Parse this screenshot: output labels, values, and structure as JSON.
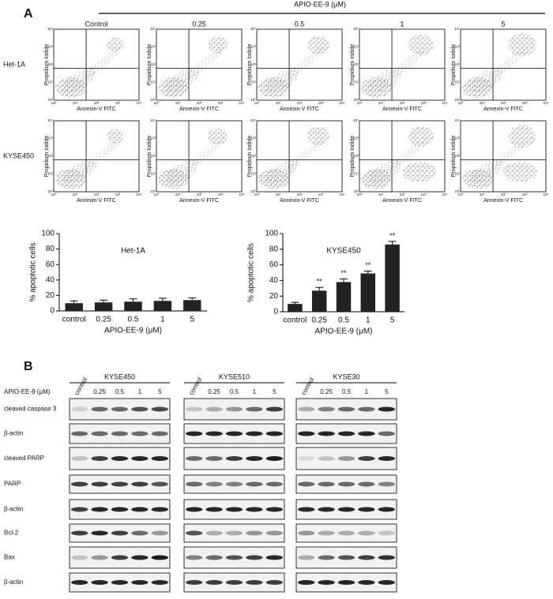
{
  "panel_a": {
    "label": "A",
    "treatment": "APIO-EE-9 (μM)",
    "columns": [
      "Control",
      "0.25",
      "0.5",
      "1",
      "5"
    ],
    "rows": [
      "Het-1A",
      "KYSE450"
    ],
    "x_axis_label": "Annexin-V FITC",
    "y_axis_label": "Propidium Iodide",
    "axis_ticks": [
      "10⁰",
      "10¹",
      "10²",
      "10³",
      "10⁴"
    ]
  },
  "chart_data": [
    {
      "type": "bar",
      "title": "Het-1A",
      "categories": [
        "control",
        "0.25",
        "0.5",
        "1",
        "5"
      ],
      "values": [
        10,
        11,
        12,
        13,
        14
      ],
      "errors": [
        3,
        3,
        3.5,
        3.5,
        3
      ],
      "x_label": "APIO-EE-9 (μM)",
      "y_label": "% apoptotic cells",
      "ylim": [
        0,
        100
      ],
      "yticks": [
        0,
        20,
        40,
        60,
        80,
        100
      ],
      "color": "#222222"
    },
    {
      "type": "bar",
      "title": "KYSE450",
      "categories": [
        "control",
        "0.25",
        "0.5",
        "1",
        "5"
      ],
      "values": [
        10,
        27,
        38,
        49,
        86
      ],
      "errors": [
        2,
        4,
        4,
        3,
        4
      ],
      "significance": [
        null,
        "**",
        "**",
        "**",
        "**"
      ],
      "x_label": "APIO-EE-9 (μM)",
      "y_label": "% apoptotic cells",
      "ylim": [
        0,
        100
      ],
      "yticks": [
        0,
        20,
        40,
        60,
        80,
        100
      ],
      "color": "#222222"
    }
  ],
  "panel_b": {
    "label": "B",
    "treatment_label": "APIO-EE-9 (μM)",
    "blots": [
      {
        "cell_line": "KYSE450",
        "lanes": [
          "control",
          "0.25",
          "0.5",
          "1",
          "5"
        ]
      },
      {
        "cell_line": "KYSE510",
        "lanes": [
          "control",
          "0.25",
          "0.5",
          "1",
          "5"
        ]
      },
      {
        "cell_line": "KYSE30",
        "lanes": [
          "control",
          "0.25",
          "0.5",
          "1",
          "5"
        ]
      }
    ],
    "rows": [
      "cleaved caspase 3",
      "β-actin",
      "cleaved PARP",
      "PARP",
      "β-actin",
      "Bcl-2",
      "Bax",
      "β-actin"
    ]
  }
}
